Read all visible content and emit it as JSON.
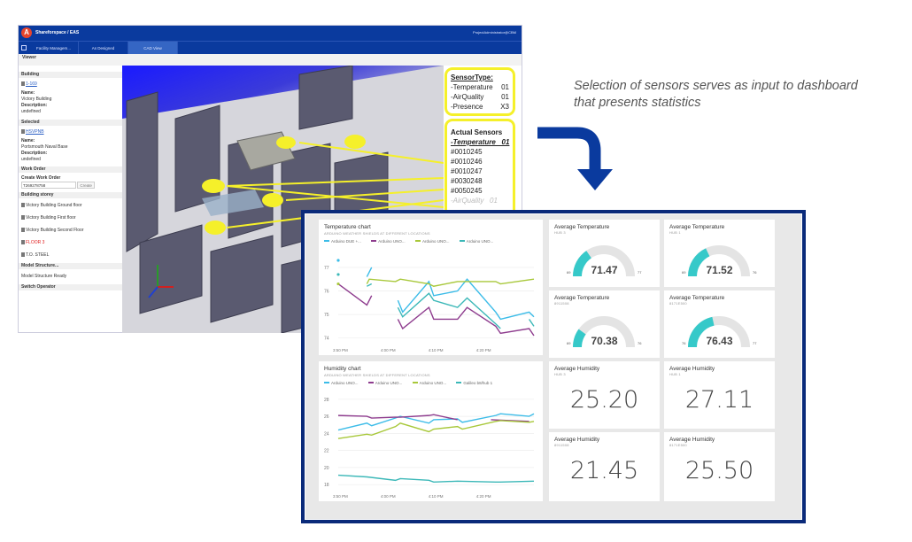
{
  "app": {
    "title": "Shareforspace / EAS",
    "user": "ProjectAdministrator@CBM",
    "tabs": [
      "Facility Managem...",
      "As Designed",
      "CAD View"
    ],
    "viewer_label": "Viewer",
    "left": {
      "building_heading": "Building",
      "building_link": "1-169",
      "name_label": "Name:",
      "building_name": "Victory Building",
      "description_label": "Description:",
      "building_desc": "undefined",
      "selected_heading": "Selected",
      "selected_link": "HSVPNB",
      "selected_name": "Portsmouth Naval Base",
      "selected_desc": "undefined",
      "workorder_heading": "Work Order",
      "create_wo_label": "Create Work Order",
      "wo_value": "T269278758",
      "create_button": "Create",
      "storey_heading": "Building storey",
      "storeys": [
        "Victory Building Ground floor",
        "Victory Building First floor",
        "Victory Building Second Floor",
        "FLOOR 3",
        "T.O. STEEL"
      ],
      "model_heading": "Model Structure...",
      "model_status": "Model Structure Ready",
      "switch_heading": "Switch Operator"
    },
    "sensor_type": {
      "title": "SensorType:",
      "items": [
        {
          "name": "-Temperature",
          "count": "01"
        },
        {
          "name": "-AirQuality",
          "count": "01"
        },
        {
          "name": "-Presence",
          "count": "X3"
        }
      ]
    },
    "actual_sensors": {
      "title": "Actual Sensors",
      "group": "-Temperature   01",
      "ids": [
        "#0010245",
        "#0010246",
        "#0010247",
        "#0030248",
        "#0050245"
      ],
      "next_group": "-AirQuality   01"
    },
    "axes_label": "y"
  },
  "annotation": {
    "line1": "Selection of sensors serves as input to dashboard",
    "line2": "that presents statistics",
    "arrow_color": "#0a3a9e"
  },
  "dashboard": {
    "gauges": [
      {
        "title": "Average Temperature",
        "sub": "HUB 3",
        "value": 71.47,
        "min": 69,
        "max": 77,
        "display": "71.47",
        "min_label": "69",
        "max_label": "77"
      },
      {
        "title": "Average Temperature",
        "sub": "HUB 1",
        "value": 71.52,
        "min": 69,
        "max": 76,
        "display": "71.52",
        "min_label": "69",
        "max_label": "76"
      },
      {
        "title": "Average Temperature",
        "sub": "8911508",
        "value": 70.38,
        "min": 69,
        "max": 76,
        "display": "70.38",
        "min_label": "69",
        "max_label": "76"
      },
      {
        "title": "Average Temperature",
        "sub": "8171E500",
        "value": 76.43,
        "min": 76,
        "max": 77,
        "display": "76.43",
        "min_label": "76",
        "max_label": "77"
      }
    ],
    "humidity": [
      {
        "title": "Average Humidity",
        "sub": "HUB 3",
        "value": "25.20"
      },
      {
        "title": "Average Humidity",
        "sub": "HUB 1",
        "value": "27.11"
      },
      {
        "title": "Average Humidity",
        "sub": "8911508",
        "value": "21.45"
      },
      {
        "title": "Average Humidity",
        "sub": "8171E500",
        "value": "25.50"
      }
    ],
    "gauge_color": "#36c9c9"
  },
  "chart_data": [
    {
      "type": "line",
      "title": "Temperature chart",
      "subtitle": "ARDUINO WEATHER SHIELDS AT DIFFERENT LOCATIONS",
      "xlabel": "",
      "ylabel": "",
      "x_unit": "minutes after 3:50 PM",
      "xlim": [
        0,
        41
      ],
      "ylim": [
        73.8,
        77.6
      ],
      "yticks": [
        74,
        75,
        76,
        77
      ],
      "xticks": [
        {
          "v": 0,
          "label": "3:50 PM"
        },
        {
          "v": 10,
          "label": "4:00 PM"
        },
        {
          "v": 20,
          "label": "4:10 PM"
        },
        {
          "v": 30,
          "label": "4:20 PM"
        }
      ],
      "series": [
        {
          "name": "Arduino DUE +...",
          "color": "#3cbce8",
          "points": [
            [
              0,
              77.3
            ],
            null,
            [
              6,
              76.6
            ],
            [
              7,
              77.0
            ],
            null,
            [
              12.5,
              75.6
            ],
            [
              13.5,
              75.1
            ],
            [
              19,
              76.4
            ],
            [
              20,
              75.8
            ],
            [
              25,
              76.0
            ],
            [
              27,
              76.5
            ],
            [
              33,
              75.1
            ],
            [
              34,
              74.8
            ],
            [
              40,
              75.1
            ],
            [
              41,
              74.9
            ]
          ]
        },
        {
          "name": "Arduino UNO...",
          "color": "#8e3c8e",
          "points": [
            [
              0,
              76.3
            ],
            [
              6,
              75.4
            ],
            [
              7,
              75.8
            ],
            null,
            [
              12.5,
              74.8
            ],
            [
              13.5,
              74.4
            ],
            [
              19,
              75.3
            ],
            [
              20,
              74.8
            ],
            [
              25,
              74.8
            ],
            [
              27,
              75.3
            ],
            [
              33,
              74.5
            ],
            [
              34,
              74.2
            ],
            [
              40,
              74.4
            ],
            [
              41,
              74.1
            ]
          ]
        },
        {
          "name": "Arduino UNO...",
          "color": "#a8c83a",
          "points": [
            [
              0,
              76.3
            ],
            null,
            [
              6,
              76.3
            ],
            [
              6.5,
              76.5
            ],
            [
              12,
              76.4
            ],
            [
              13,
              76.5
            ],
            [
              19,
              76.3
            ],
            [
              20,
              76.2
            ],
            [
              25,
              76.4
            ],
            [
              27,
              76.4
            ],
            [
              33,
              76.4
            ],
            [
              34,
              76.3
            ],
            [
              41,
              76.5
            ]
          ]
        },
        {
          "name": "Arduino UNO...",
          "color": "#3cb8b8",
          "points": [
            [
              0,
              76.7
            ],
            null,
            [
              6,
              76.2
            ],
            [
              7,
              76.3
            ],
            null,
            [
              12.5,
              75.3
            ],
            [
              13.5,
              74.9
            ],
            [
              19,
              75.9
            ],
            [
              20,
              75.6
            ],
            [
              25,
              75.3
            ],
            [
              27,
              75.7
            ],
            [
              33,
              74.6
            ],
            [
              34,
              74.4
            ],
            null,
            [
              40,
              74.8
            ],
            [
              41,
              74.5
            ]
          ]
        }
      ]
    },
    {
      "type": "line",
      "title": "Humidity chart",
      "subtitle": "ARDUINO WEATHER SHIELDS AT DIFFERENT LOCATIONS",
      "xlabel": "",
      "ylabel": "",
      "x_unit": "minutes after 3:50 PM",
      "xlim": [
        0,
        41
      ],
      "ylim": [
        17.5,
        28.5
      ],
      "yticks": [
        18,
        20,
        22,
        24,
        26,
        28
      ],
      "xticks": [
        {
          "v": 0,
          "label": "3:50 PM"
        },
        {
          "v": 10,
          "label": "4:00 PM"
        },
        {
          "v": 20,
          "label": "4:10 PM"
        },
        {
          "v": 30,
          "label": "4:20 PM"
        }
      ],
      "series": [
        {
          "name": "Arduino UNO...",
          "color": "#3cbce8",
          "points": [
            [
              0,
              24.4
            ],
            [
              6,
              25.2
            ],
            [
              7,
              24.9
            ],
            [
              12,
              25.8
            ],
            [
              13,
              26.0
            ],
            [
              19,
              25.2
            ],
            [
              20,
              25.6
            ],
            [
              25,
              25.7
            ],
            [
              26,
              25.3
            ],
            [
              33,
              26.1
            ],
            [
              34,
              26.3
            ],
            [
              40,
              26.0
            ],
            [
              41,
              26.3
            ]
          ]
        },
        {
          "name": "Arduino UNO...",
          "color": "#8e3c8e",
          "points": [
            [
              0,
              26.1
            ],
            [
              6,
              26.0
            ],
            [
              7,
              25.8
            ],
            [
              12,
              25.9
            ],
            [
              13,
              25.9
            ],
            [
              19,
              26.1
            ],
            [
              20,
              26.2
            ],
            [
              25,
              25.6
            ],
            null,
            [
              32,
              25.6
            ],
            [
              40,
              25.4
            ]
          ]
        },
        {
          "name": "Arduino UNO...",
          "color": "#a8c83a",
          "points": [
            [
              0,
              23.4
            ],
            [
              6,
              23.9
            ],
            [
              7,
              23.8
            ],
            [
              12,
              24.8
            ],
            [
              13,
              25.2
            ],
            [
              19,
              24.2
            ],
            [
              20,
              24.5
            ],
            [
              25,
              24.8
            ],
            [
              26,
              24.5
            ],
            [
              33,
              25.4
            ],
            [
              34,
              25.5
            ],
            [
              40,
              25.3
            ],
            [
              41,
              25.4
            ]
          ]
        },
        {
          "name": "Galileo b8/hub 1",
          "color": "#3cb8b8",
          "points": [
            [
              0,
              19.1
            ],
            [
              6,
              18.9
            ],
            [
              12,
              18.5
            ],
            [
              13,
              18.7
            ],
            [
              19,
              18.5
            ],
            [
              20,
              18.3
            ],
            [
              25,
              18.4
            ],
            [
              33,
              18.3
            ],
            [
              34,
              18.3
            ],
            [
              41,
              18.4
            ]
          ]
        }
      ]
    }
  ]
}
